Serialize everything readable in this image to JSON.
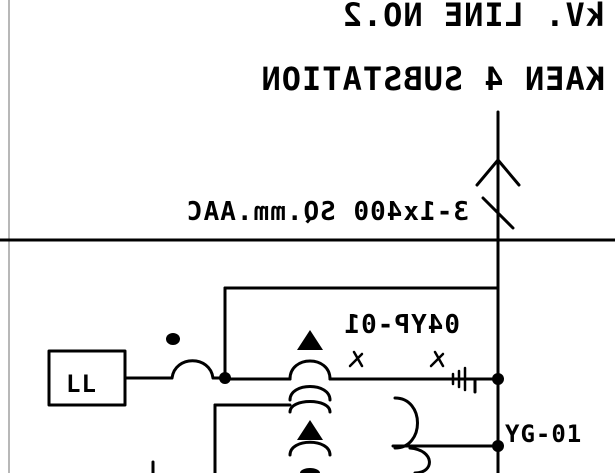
{
  "drawing": {
    "line_title": "kV. LINE NO.2",
    "substation_title": "KAEN 4 SUBSTATION",
    "conductor_label": "3-1x400 SQ.mm.AAC",
    "relay_tag_top": "04YP-01",
    "relay_tag_bottom": "YG-01",
    "box_label": "LL",
    "stroke_color": "#000000",
    "background_color": "#ffffff"
  }
}
